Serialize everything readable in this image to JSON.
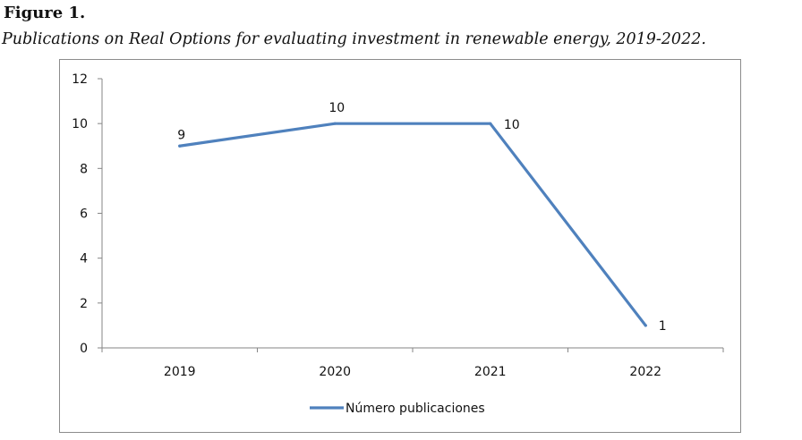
{
  "figure": {
    "label": "Figure 1.",
    "caption": "Publications on Real Options for evaluating investment in renewable energy, 2019-2022."
  },
  "chart_data": {
    "type": "line",
    "categories": [
      "2019",
      "2020",
      "2021",
      "2022"
    ],
    "series": [
      {
        "name": "Número publicaciones",
        "values": [
          9,
          10,
          10,
          1
        ],
        "color": "#4f81bd"
      }
    ],
    "ylim": [
      0,
      12
    ],
    "yticks": [
      0,
      2,
      4,
      6,
      8,
      10,
      12
    ],
    "grid": false,
    "legend": "bottom",
    "data_labels": true
  }
}
